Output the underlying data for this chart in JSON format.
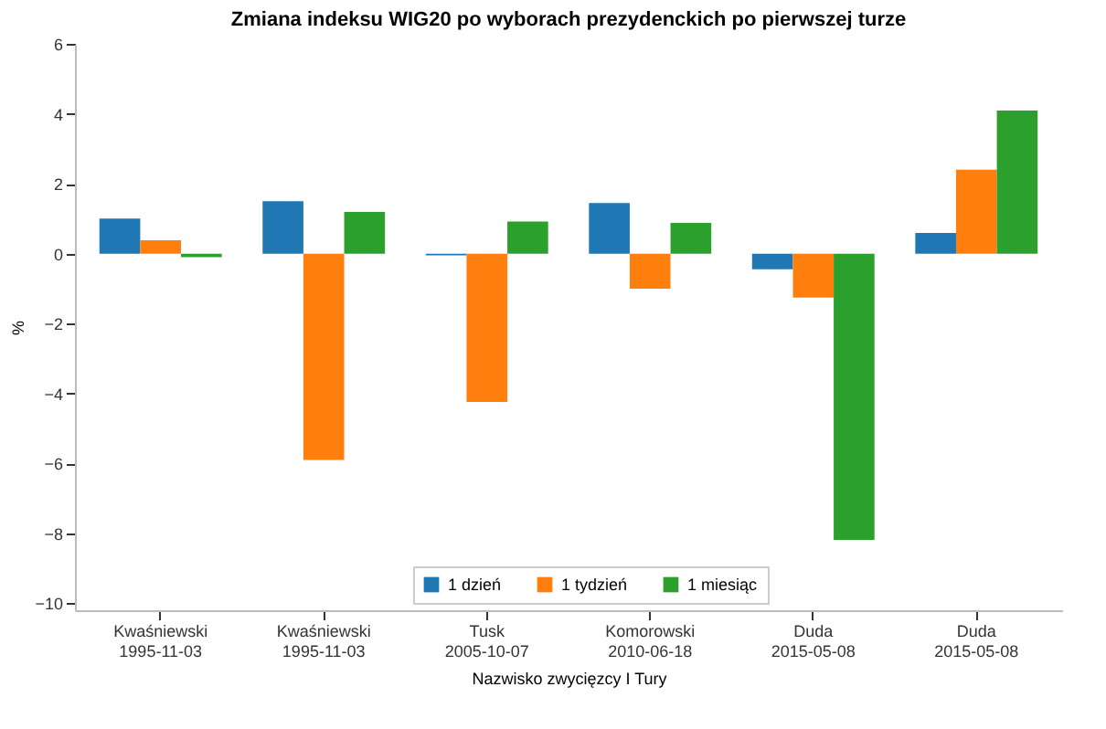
{
  "chart_data": {
    "type": "bar",
    "title": "Zmiana indeksu WIG20 po wyborach prezydenckich po pierwszej turze",
    "xlabel": "Nazwisko zwycięzcy I Tury",
    "ylabel": "%",
    "categories": [
      "Kwaśniewski\n1995-11-03",
      "Kwaśniewski\n1995-11-03",
      "Tusk\n2005-10-07",
      "Komorowski\n2010-06-18",
      "Duda\n2015-05-08",
      "Duda\n2015-05-08"
    ],
    "series": [
      {
        "name": "1 dzień",
        "color": "#1f77b4",
        "values": [
          1.0,
          1.5,
          -0.05,
          1.45,
          -0.45,
          0.59
        ]
      },
      {
        "name": "1 tydzień",
        "color": "#ff7f0e",
        "values": [
          0.38,
          -5.9,
          -4.24,
          -1.0,
          -1.26,
          2.4
        ]
      },
      {
        "name": "1 miesiąc",
        "color": "#2ca02c",
        "values": [
          -0.1,
          1.19,
          0.92,
          0.88,
          -8.19,
          4.09
        ]
      }
    ],
    "ylim": [
      -10.2,
      6
    ],
    "yticks": [
      -10,
      -8,
      -6,
      -4,
      -2,
      0,
      2,
      4,
      6
    ],
    "grid": false,
    "legend": "bottom"
  }
}
